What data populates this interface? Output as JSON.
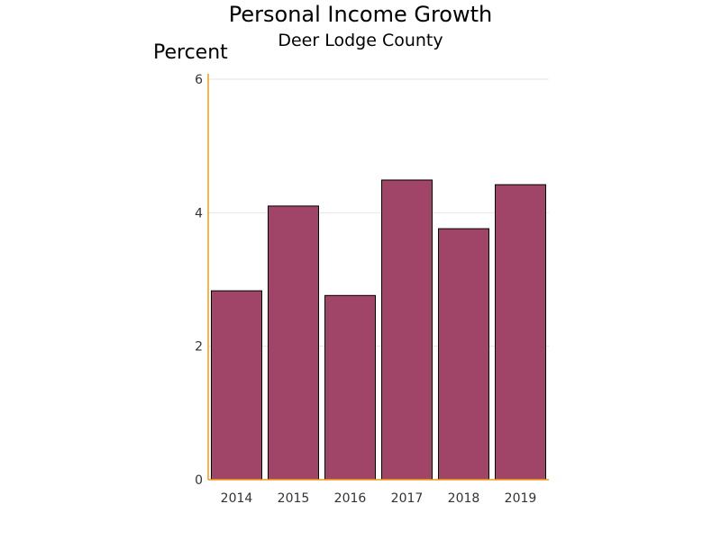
{
  "chart_data": {
    "type": "bar",
    "title": "Personal Income Growth",
    "subtitle": "Deer Lodge County",
    "ylabel": "Percent",
    "xlabel": "",
    "categories": [
      "2014",
      "2015",
      "2016",
      "2017",
      "2018",
      "2019"
    ],
    "values": [
      2.83,
      4.1,
      2.76,
      4.49,
      3.76,
      4.42
    ],
    "ylim": [
      0,
      6
    ],
    "yticks": [
      "0",
      "2",
      "4",
      "6"
    ],
    "grid": true,
    "legend": "none",
    "colors": {
      "bar_fill": "#a04468",
      "bar_stroke": "#000000",
      "axis": "#f39c12",
      "grid": "#e6e6e6"
    }
  }
}
